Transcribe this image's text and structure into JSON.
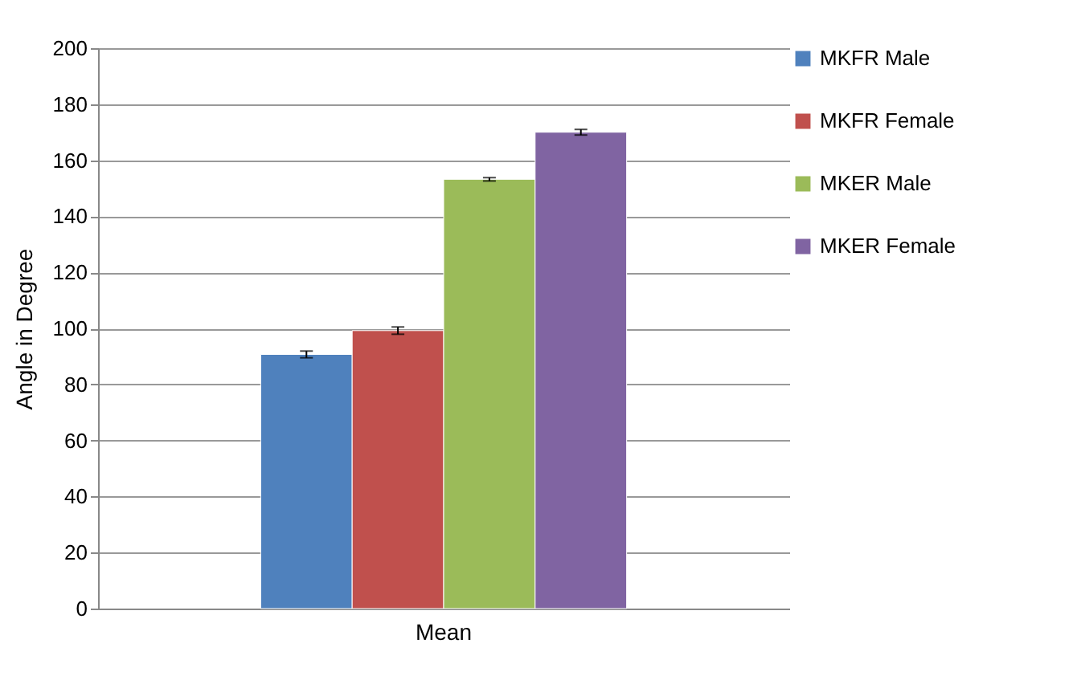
{
  "chart_data": {
    "type": "bar",
    "ylabel": "Angle in Degree",
    "categories": [
      "Mean"
    ],
    "series": [
      {
        "name": "MKFR Male",
        "color": "#4f81bd",
        "values": [
          90.7
        ],
        "errors": [
          1.2
        ]
      },
      {
        "name": "MKFR Female",
        "color": "#c0504d",
        "values": [
          99.2
        ],
        "errors": [
          1.3
        ]
      },
      {
        "name": "MKER Male",
        "color": "#9bbb59",
        "values": [
          153.2
        ],
        "errors": [
          0.6
        ]
      },
      {
        "name": "MKER Female",
        "color": "#8064a2",
        "values": [
          170
        ],
        "errors": [
          1
        ]
      }
    ],
    "ylim": [
      0,
      200
    ],
    "yticks": [
      0,
      20,
      40,
      60,
      80,
      100,
      120,
      140,
      160,
      180,
      200
    ],
    "grid": "y",
    "legend": "right"
  }
}
